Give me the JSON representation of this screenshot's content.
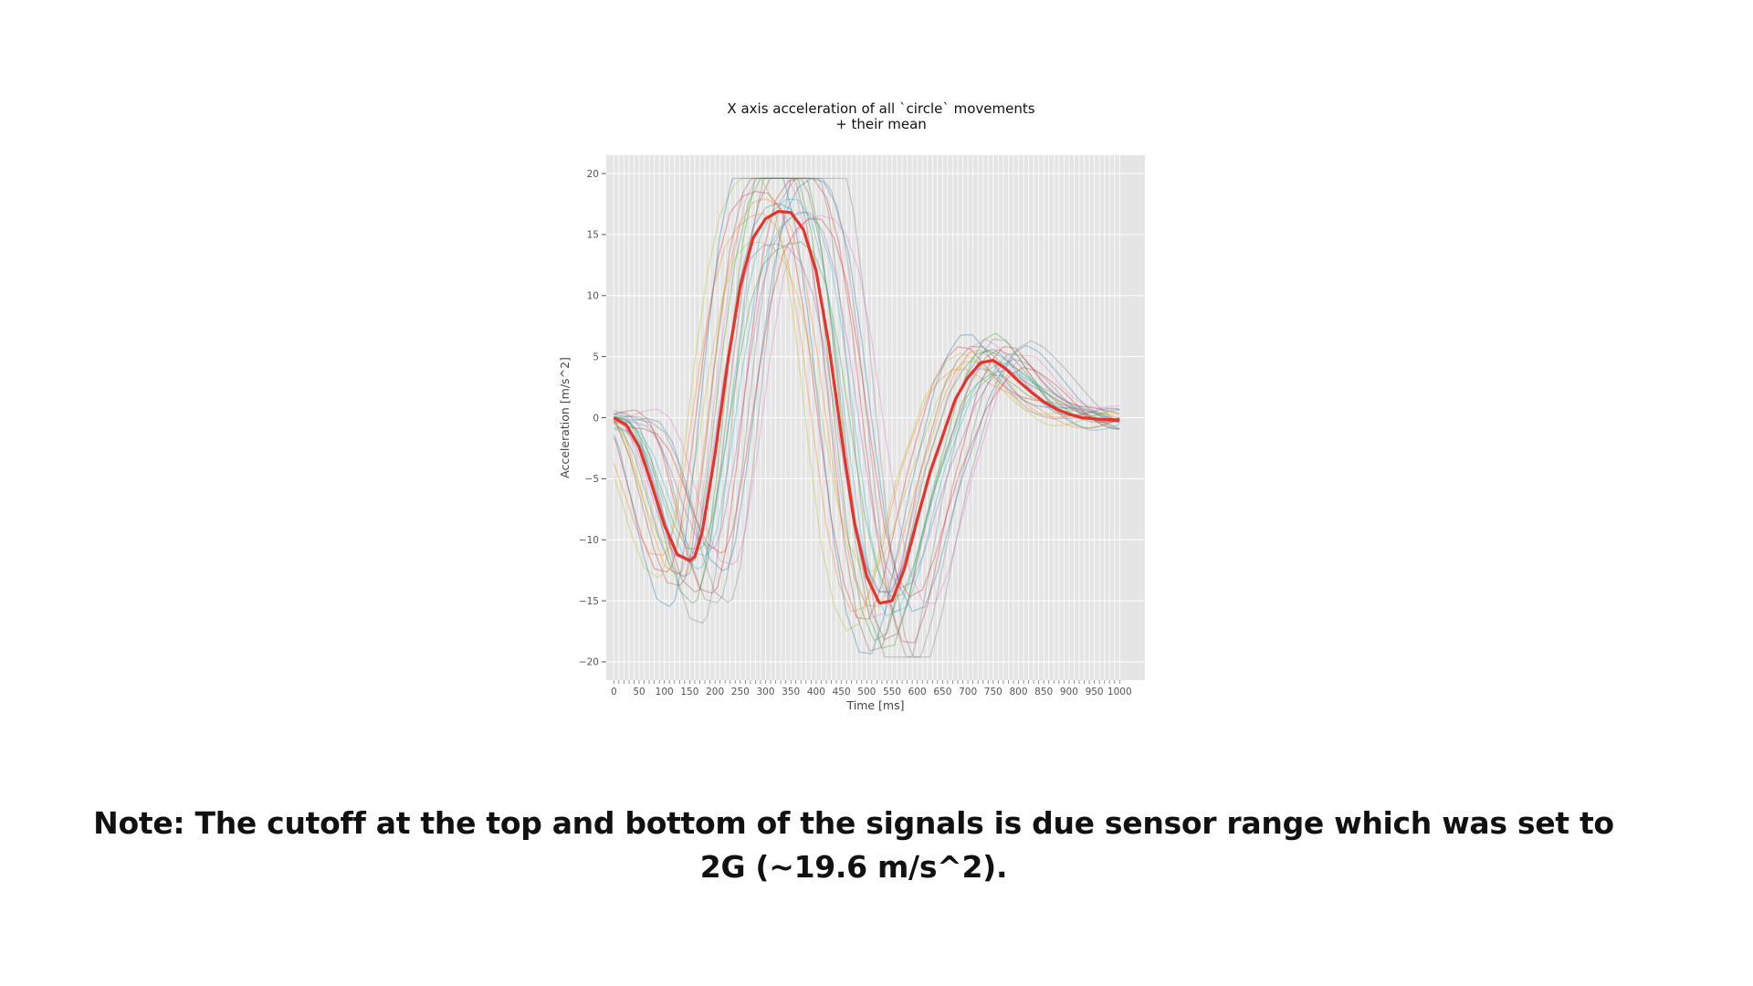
{
  "note": "Note: The cutoff at the top and bottom of the signals is due sensor range which was set to 2G (~19.6 m/s^2).",
  "chart_data": {
    "type": "line",
    "title": [
      "X axis acceleration of all `circle` movements",
      "+ their mean"
    ],
    "xlabel": "Time [ms]",
    "ylabel": "Acceleration [m/s^2]",
    "xlim": [
      -15,
      1050
    ],
    "ylim": [
      -21.5,
      21.5
    ],
    "xticks": [
      0,
      50,
      100,
      150,
      200,
      250,
      300,
      350,
      400,
      450,
      500,
      550,
      600,
      650,
      700,
      750,
      800,
      850,
      900,
      950,
      1000
    ],
    "xtick_labels": [
      "0",
      "50",
      "100",
      "150",
      "200",
      "250",
      "300",
      "350",
      "400",
      "450",
      "500",
      "550",
      "600",
      "650",
      "700",
      "750",
      "800",
      "850",
      "900",
      "950",
      "1000"
    ],
    "yticks": [
      20,
      15,
      10,
      5,
      0,
      -5,
      -10,
      -15,
      -20
    ],
    "ytick_labels": [
      "20",
      "15",
      "10",
      "5",
      "0",
      "−5",
      "−10",
      "−15",
      "−20"
    ],
    "minor_x_grid_step": 10,
    "grid": true,
    "clip_value": 19.6,
    "mean_color": "#e8322a",
    "background_color": "#e5e5e5",
    "mean_series": {
      "x": [
        0,
        25,
        50,
        75,
        100,
        125,
        150,
        160,
        175,
        200,
        225,
        250,
        275,
        300,
        325,
        350,
        375,
        400,
        425,
        450,
        475,
        500,
        525,
        550,
        575,
        600,
        625,
        650,
        675,
        700,
        725,
        750,
        775,
        800,
        825,
        850,
        875,
        900,
        925,
        950,
        975,
        1000
      ],
      "y": [
        0,
        -0.6,
        -2.4,
        -5.5,
        -8.8,
        -11.2,
        -11.7,
        -11.4,
        -9.3,
        -3.0,
        4.5,
        10.8,
        14.7,
        16.3,
        16.9,
        16.8,
        15.4,
        12.0,
        6.0,
        -1.5,
        -8.5,
        -13.0,
        -15.2,
        -15.0,
        -12.3,
        -8.3,
        -4.5,
        -1.5,
        1.5,
        3.3,
        4.5,
        4.7,
        4.0,
        3.0,
        2.1,
        1.3,
        0.7,
        0.3,
        0.0,
        -0.1,
        -0.15,
        -0.2
      ]
    },
    "individual_series": [
      {
        "color": "#1f77b4",
        "shift": 0,
        "scale": 1.0,
        "offset": 0.3
      },
      {
        "color": "#ff7f0e",
        "shift": -25,
        "scale": 1.05,
        "offset": 0.0
      },
      {
        "color": "#2ca02c",
        "shift": 20,
        "scale": 0.9,
        "offset": -0.4
      },
      {
        "color": "#d62728",
        "shift": -45,
        "scale": 1.1,
        "offset": 0.5
      },
      {
        "color": "#9467bd",
        "shift": 40,
        "scale": 0.95,
        "offset": 0.2
      },
      {
        "color": "#8c564b",
        "shift": 10,
        "scale": 1.2,
        "offset": -0.3
      },
      {
        "color": "#e377c2",
        "shift": -15,
        "scale": 1.15,
        "offset": 0.6
      },
      {
        "color": "#7f7f7f",
        "shift": 55,
        "scale": 1.25,
        "offset": -0.5
      },
      {
        "color": "#bcbd22",
        "shift": -35,
        "scale": 0.85,
        "offset": 0.1
      },
      {
        "color": "#17becf",
        "shift": 30,
        "scale": 1.0,
        "offset": -0.2
      },
      {
        "color": "#1f77b4",
        "shift": 65,
        "scale": 1.1,
        "offset": 0.4
      },
      {
        "color": "#ff7f0e",
        "shift": -55,
        "scale": 1.0,
        "offset": -0.1
      },
      {
        "color": "#2ca02c",
        "shift": 5,
        "scale": 1.3,
        "offset": 0.3
      },
      {
        "color": "#d62728",
        "shift": 45,
        "scale": 1.2,
        "offset": 0.0
      },
      {
        "color": "#9467bd",
        "shift": -5,
        "scale": 0.9,
        "offset": -0.6
      },
      {
        "color": "#7f7f7f",
        "shift": 75,
        "scale": 1.35,
        "offset": 0.2
      },
      {
        "color": "#8c564b",
        "shift": -20,
        "scale": 1.25,
        "offset": 0.5
      },
      {
        "color": "#17becf",
        "shift": 15,
        "scale": 1.05,
        "offset": -0.4
      },
      {
        "color": "#e377c2",
        "shift": 85,
        "scale": 1.0,
        "offset": 0.1
      },
      {
        "color": "#bcbd22",
        "shift": -65,
        "scale": 1.15,
        "offset": 0.0
      },
      {
        "color": "#7f7f7f",
        "shift": 25,
        "scale": 1.4,
        "offset": -0.2
      },
      {
        "color": "#1f77b4",
        "shift": -40,
        "scale": 1.3,
        "offset": 0.3
      },
      {
        "color": "#d62728",
        "shift": 60,
        "scale": 0.95,
        "offset": -0.3
      },
      {
        "color": "#2ca02c",
        "shift": -10,
        "scale": 1.2,
        "offset": 0.4
      }
    ]
  }
}
